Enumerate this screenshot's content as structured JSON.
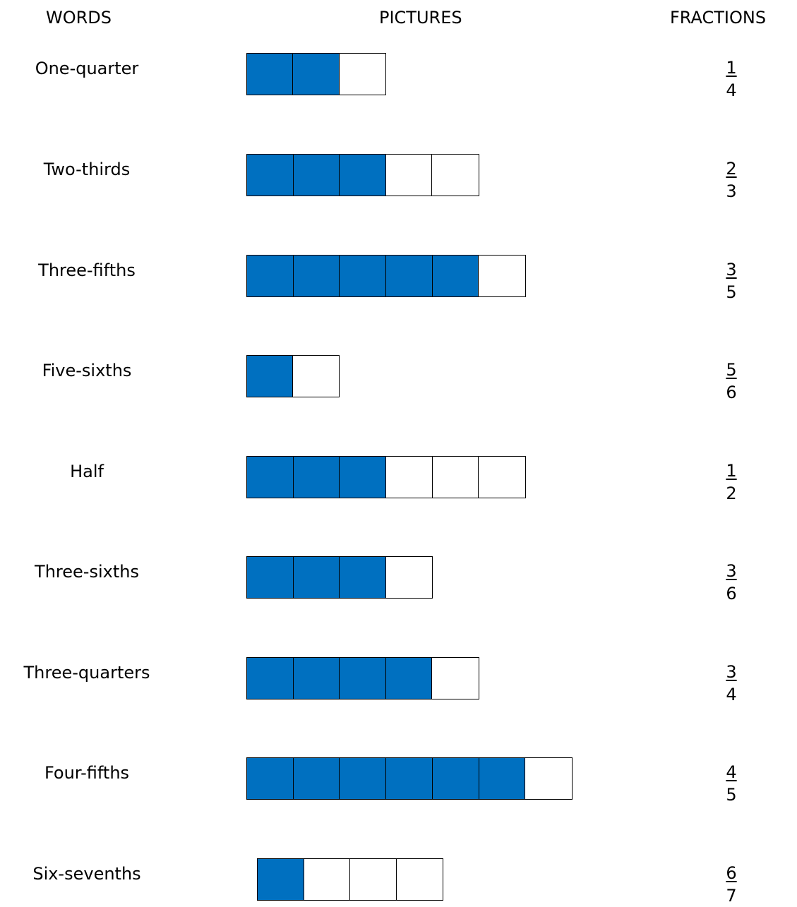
{
  "headers": {
    "words": "WORDS",
    "pictures": "PICTURES",
    "fractions": "FRACTIONS"
  },
  "colors": {
    "filled": "#0070c0",
    "empty": "#ffffff",
    "border": "#000000"
  },
  "rows": [
    {
      "word": "One-quarter",
      "filled": 2,
      "total": 3,
      "numerator": "1",
      "denominator": "4"
    },
    {
      "word": "Two-thirds",
      "filled": 3,
      "total": 5,
      "numerator": "2",
      "denominator": "3"
    },
    {
      "word": "Three-fifths",
      "filled": 5,
      "total": 6,
      "numerator": "3",
      "denominator": "5"
    },
    {
      "word": "Five-sixths",
      "filled": 1,
      "total": 2,
      "numerator": "5",
      "denominator": "6"
    },
    {
      "word": "Half",
      "filled": 3,
      "total": 6,
      "numerator": "1",
      "denominator": "2"
    },
    {
      "word": "Three-sixths",
      "filled": 3,
      "total": 4,
      "numerator": "3",
      "denominator": "6"
    },
    {
      "word": "Three-quarters",
      "filled": 4,
      "total": 5,
      "numerator": "3",
      "denominator": "4"
    },
    {
      "word": "Four-fifths",
      "filled": 6,
      "total": 7,
      "numerator": "4",
      "denominator": "5"
    },
    {
      "word": "Six-sevenths",
      "filled": 1,
      "total": 4,
      "numerator": "6",
      "denominator": "7"
    }
  ]
}
